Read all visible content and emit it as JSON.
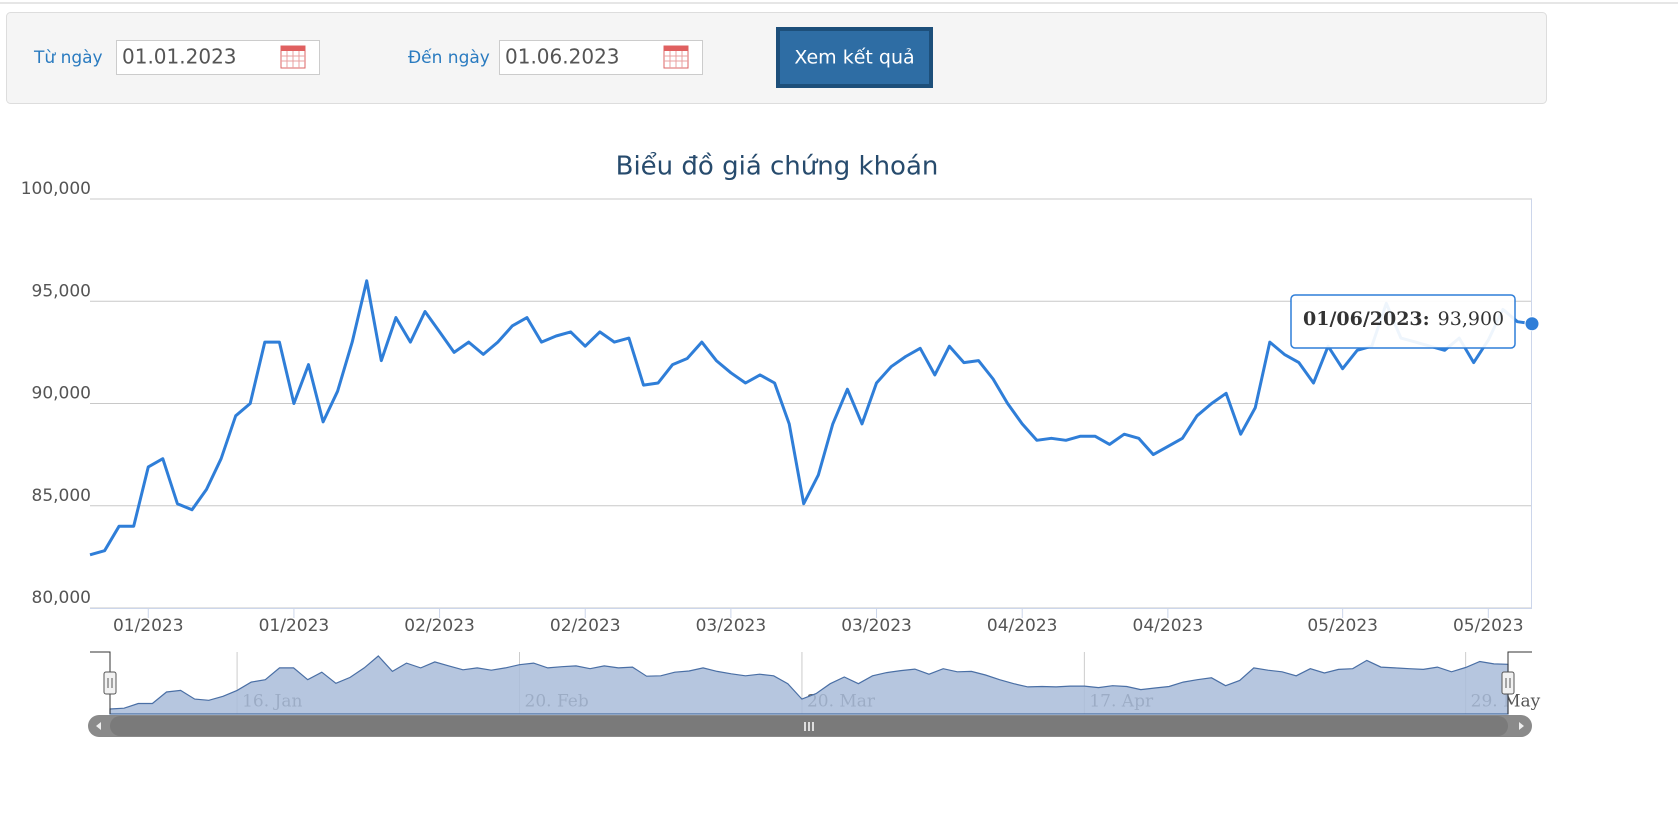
{
  "form": {
    "from_label": "Từ ngày",
    "from_value": "01.01.2023",
    "to_label": "Đến ngày",
    "to_value": "01.06.2023",
    "button": "Xem kết quả"
  },
  "chart_data": {
    "type": "line",
    "title": "Biểu đồ giá chứng khoán",
    "categories": [
      null,
      null,
      null,
      null,
      "01/2023",
      null,
      null,
      null,
      null,
      null,
      null,
      null,
      null,
      null,
      "01/2023",
      null,
      null,
      null,
      null,
      null,
      null,
      null,
      null,
      null,
      "02/2023",
      null,
      null,
      null,
      null,
      null,
      null,
      null,
      null,
      null,
      "02/2023",
      null,
      null,
      null,
      null,
      null,
      null,
      null,
      null,
      null,
      "03/2023",
      null,
      null,
      null,
      null,
      null,
      null,
      null,
      null,
      null,
      "03/2023",
      null,
      null,
      null,
      null,
      null,
      null,
      null,
      null,
      null,
      "04/2023",
      null,
      null,
      null,
      null,
      null,
      null,
      null,
      null,
      null,
      "04/2023",
      null,
      null,
      null,
      null,
      null,
      null,
      null,
      null,
      null,
      null,
      null,
      "05/2023",
      null,
      null,
      null,
      null,
      null,
      null,
      null,
      null,
      null,
      "05/2023",
      null,
      null,
      null
    ],
    "values": [
      82600,
      82800,
      84000,
      84000,
      86900,
      87300,
      85100,
      84800,
      85800,
      87300,
      89400,
      90000,
      93000,
      93000,
      90000,
      91900,
      89100,
      90600,
      93000,
      96000,
      92100,
      94200,
      93000,
      94500,
      93500,
      92500,
      93000,
      92400,
      93000,
      93800,
      94200,
      93000,
      93300,
      93500,
      92800,
      93500,
      93000,
      93200,
      90900,
      91000,
      91900,
      92200,
      93000,
      92100,
      91500,
      91000,
      91400,
      91000,
      89000,
      85100,
      86500,
      89000,
      90700,
      89000,
      91000,
      91800,
      92300,
      92700,
      91400,
      92800,
      92000,
      92100,
      91200,
      90000,
      89000,
      88200,
      88300,
      88200,
      88400,
      88400,
      88000,
      88500,
      88300,
      87500,
      87900,
      88300,
      89400,
      90000,
      90500,
      88500,
      89800,
      93000,
      92400,
      92000,
      91000,
      92800,
      91700,
      92600,
      92800,
      94900,
      93200,
      93000,
      92800,
      92600,
      93200,
      92000,
      93100,
      94600,
      94000,
      93900
    ],
    "color": "#2f7ed8",
    "ylim": [
      80000,
      100000
    ],
    "yticks": [
      {
        "value": 80000,
        "label": "80,000"
      },
      {
        "value": 85000,
        "label": "85,000"
      },
      {
        "value": 90000,
        "label": "90,000"
      },
      {
        "value": 95000,
        "label": "95,000"
      },
      {
        "value": 100000,
        "label": "100,000"
      }
    ],
    "grid": true,
    "tooltip": {
      "label": "01/06/2023:",
      "value_label": "93,900"
    },
    "navigator": {
      "categories": [
        null,
        null,
        null,
        null,
        null,
        null,
        null,
        null,
        null,
        "16. Jan",
        null,
        null,
        null,
        null,
        null,
        null,
        null,
        null,
        null,
        null,
        null,
        null,
        null,
        null,
        null,
        null,
        null,
        null,
        null,
        "20. Feb",
        null,
        null,
        null,
        null,
        null,
        null,
        null,
        null,
        null,
        null,
        null,
        null,
        null,
        null,
        null,
        null,
        null,
        null,
        null,
        "20. Mar",
        null,
        null,
        null,
        null,
        null,
        null,
        null,
        null,
        null,
        null,
        null,
        null,
        null,
        null,
        null,
        null,
        null,
        null,
        null,
        "17. Apr",
        null,
        null,
        null,
        null,
        null,
        null,
        null,
        null,
        null,
        null,
        null,
        null,
        null,
        null,
        null,
        null,
        null,
        null,
        null,
        null,
        null,
        null,
        null,
        null,
        null,
        null,
        "29. May",
        null,
        null,
        null
      ]
    }
  }
}
